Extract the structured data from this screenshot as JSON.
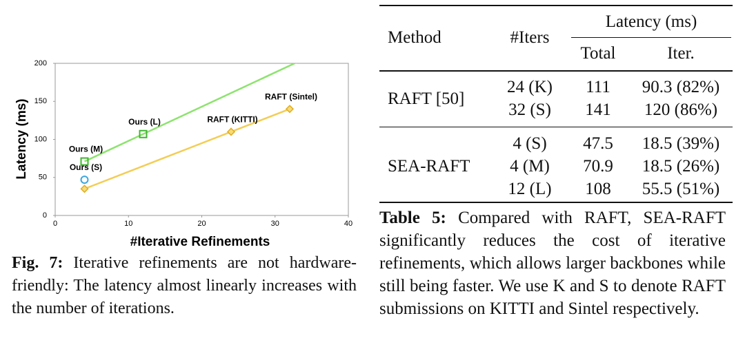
{
  "chart_data": {
    "type": "scatter",
    "xlabel": "#Iterative Refinements",
    "ylabel": "Latency (ms)",
    "xlim": [
      0,
      40
    ],
    "xticks": [
      0,
      10,
      20,
      30,
      40
    ],
    "ylim": [
      0,
      200
    ],
    "yticks": [
      0,
      50,
      100,
      150,
      200
    ],
    "series": [
      {
        "color": "#e2ad1e",
        "line_color": "#f3cd55",
        "marker": "diamond",
        "line": true,
        "x": [
          4,
          24,
          32
        ],
        "values": [
          35,
          110,
          140
        ],
        "labels": [
          null,
          "RAFT (KITTI)",
          "RAFT (Sintel)"
        ]
      },
      {
        "color": "#3fb52f",
        "line_color": "#8de36e",
        "marker": "square",
        "line": true,
        "x": [
          4,
          12
        ],
        "values": [
          71,
          107
        ],
        "labels": [
          "Ours (M)",
          "Ours (L)"
        ]
      },
      {
        "color": "#3aa6e0",
        "marker": "circle",
        "line": false,
        "x": [
          4
        ],
        "values": [
          47
        ],
        "labels": [
          "Ours (S)"
        ]
      }
    ]
  },
  "figure_caption": {
    "label": "Fig. 7:",
    "text": "Iterative refinements are not hardware-friendly: The latency almost linearly increases with the number of iterations."
  },
  "table": {
    "header": {
      "method": "Method",
      "iters": "#Iters",
      "latency": "Latency (ms)",
      "total": "Total",
      "iter": "Iter."
    },
    "groups": [
      {
        "method": "RAFT [50]",
        "rows": [
          [
            "24 (K)",
            111,
            "90.3 (82%)"
          ],
          [
            "32 (S)",
            141,
            "120 (86%)"
          ]
        ]
      },
      {
        "method": "SEA-RAFT",
        "rows": [
          [
            "4 (S)",
            47.5,
            "18.5 (39%)"
          ],
          [
            "4 (M)",
            70.9,
            "18.5 (26%)"
          ],
          [
            "12 (L)",
            108,
            "55.5 (51%)"
          ]
        ]
      }
    ]
  },
  "table_caption": {
    "label": "Table 5:",
    "text": "Compared with RAFT, SEA-RAFT significantly reduces the cost of iterative refinements, which allows larger backbones while still being faster. We use K and S to denote RAFT submissions on KITTI and Sintel respectively."
  }
}
